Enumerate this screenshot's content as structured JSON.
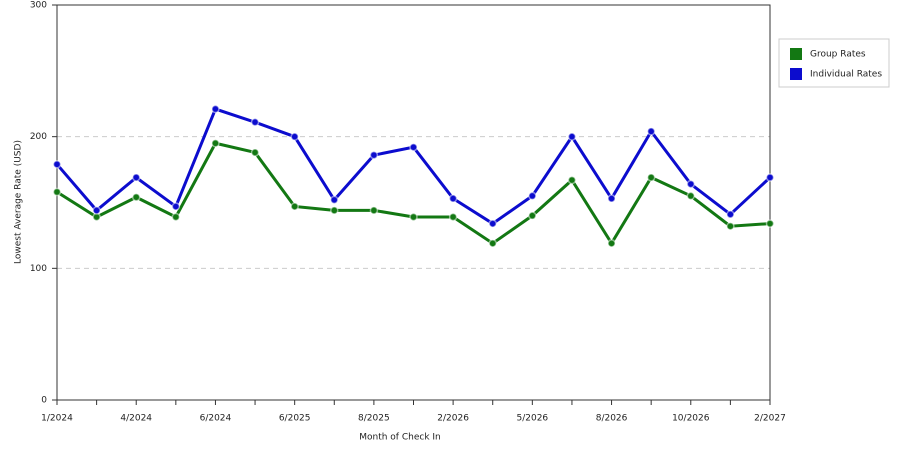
{
  "chart_data": {
    "type": "line",
    "x_label": "Month of Check In",
    "y_label": "Lowest Average Rate (USD)",
    "categories": [
      "1/2024",
      null,
      "4/2024",
      null,
      "6/2024",
      null,
      "6/2025",
      null,
      "8/2025",
      null,
      "2/2026",
      null,
      "5/2026",
      null,
      "8/2026",
      null,
      "10/2026",
      null,
      "2/2027"
    ],
    "series": [
      {
        "name": "Group Rates",
        "color": "#137813",
        "values": [
          158,
          139,
          154,
          139,
          195,
          188,
          147,
          144,
          144,
          139,
          139,
          119,
          140,
          167,
          119,
          169,
          155,
          132,
          134
        ]
      },
      {
        "name": "Individual Rates",
        "color": "#0c0cce",
        "values": [
          179,
          144,
          169,
          147,
          221,
          211,
          200,
          152,
          186,
          192,
          153,
          134,
          155,
          200,
          153,
          204,
          164,
          141,
          169
        ]
      }
    ],
    "ylim": [
      0,
      300
    ],
    "yticks": [
      0,
      100,
      200,
      300
    ],
    "grid": true,
    "legend": "right"
  }
}
